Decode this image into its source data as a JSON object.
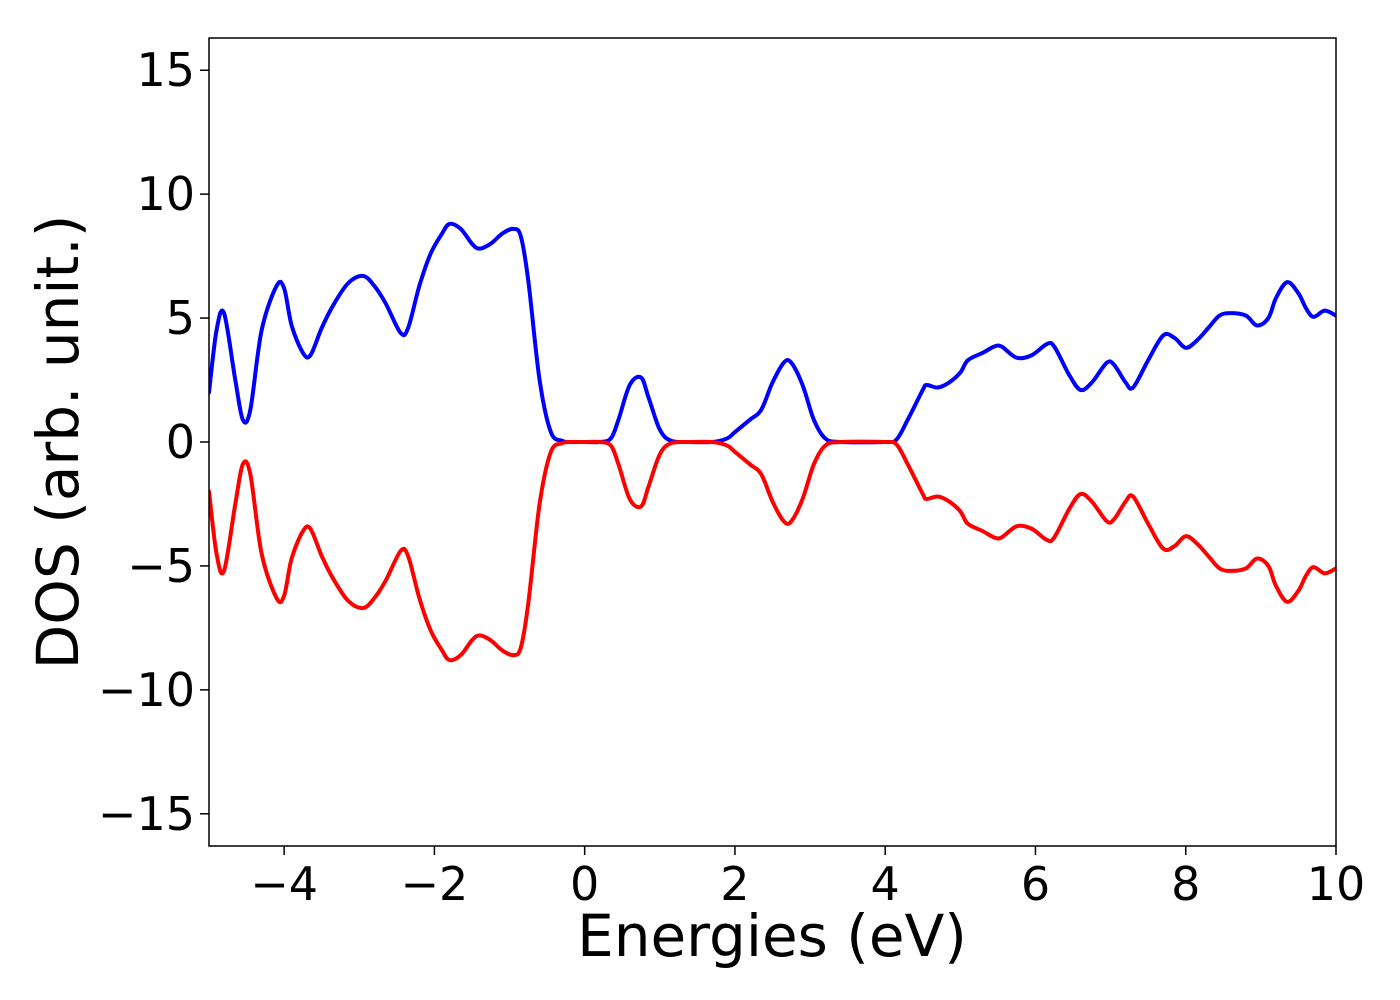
{
  "chart_data": {
    "type": "line",
    "title": "",
    "xlabel": "Energies (eV)",
    "ylabel": "DOS (arb. unit.)",
    "xlim": [
      -5,
      10
    ],
    "ylim": [
      -16.3,
      16.3
    ],
    "grid": false,
    "legend": "none",
    "x_ticks": [
      {
        "value": -4,
        "label": "−4"
      },
      {
        "value": -2,
        "label": "−2"
      },
      {
        "value": 0,
        "label": "0"
      },
      {
        "value": 2,
        "label": "2"
      },
      {
        "value": 4,
        "label": "4"
      },
      {
        "value": 6,
        "label": "6"
      },
      {
        "value": 8,
        "label": "8"
      },
      {
        "value": 10,
        "label": "10"
      }
    ],
    "y_ticks": [
      {
        "value": 15,
        "label": "15"
      },
      {
        "value": 10,
        "label": "10"
      },
      {
        "value": 5,
        "label": "5"
      },
      {
        "value": 0,
        "label": "0"
      },
      {
        "value": -5,
        "label": "−5"
      },
      {
        "value": -10,
        "label": "−10"
      },
      {
        "value": -15,
        "label": "−15"
      }
    ],
    "series": [
      {
        "color": "#0000ff",
        "x": [
          -5.0,
          -4.9,
          -4.8,
          -4.65,
          -4.55,
          -4.45,
          -4.3,
          -4.1,
          -4.0,
          -3.9,
          -3.75,
          -3.65,
          -3.5,
          -3.35,
          -3.15,
          -2.95,
          -2.8,
          -2.65,
          -2.45,
          -2.35,
          -2.2,
          -2.05,
          -1.9,
          -1.8,
          -1.65,
          -1.5,
          -1.4,
          -1.25,
          -1.1,
          -0.95,
          -0.85,
          -0.75,
          -0.6,
          -0.45,
          -0.3,
          -0.2,
          0.0,
          0.2,
          0.35,
          0.45,
          0.6,
          0.75,
          0.85,
          1.0,
          1.15,
          1.4,
          1.7,
          1.9,
          2.0,
          2.2,
          2.35,
          2.5,
          2.65,
          2.75,
          2.9,
          3.05,
          3.2,
          3.4,
          4.0,
          4.15,
          4.3,
          4.5,
          4.55,
          4.7,
          4.85,
          5.0,
          5.1,
          5.3,
          5.45,
          5.55,
          5.75,
          5.95,
          6.15,
          6.25,
          6.45,
          6.6,
          6.75,
          6.95,
          7.05,
          7.2,
          7.3,
          7.5,
          7.7,
          7.85,
          8.0,
          8.15,
          8.3,
          8.45,
          8.6,
          8.8,
          8.95,
          9.1,
          9.2,
          9.35,
          9.5,
          9.6,
          9.7,
          9.85,
          10.0
        ],
        "y": [
          2.0,
          4.5,
          5.2,
          2.5,
          0.9,
          1.3,
          4.5,
          6.3,
          6.2,
          4.7,
          3.6,
          3.5,
          4.6,
          5.5,
          6.4,
          6.7,
          6.3,
          5.6,
          4.4,
          4.6,
          6.3,
          7.6,
          8.4,
          8.8,
          8.6,
          8.0,
          7.8,
          8.0,
          8.4,
          8.6,
          8.3,
          6.5,
          2.5,
          0.4,
          0.05,
          0.0,
          0.0,
          0.0,
          0.15,
          0.9,
          2.3,
          2.6,
          1.8,
          0.5,
          0.05,
          0.0,
          0.0,
          0.15,
          0.4,
          0.9,
          1.3,
          2.4,
          3.2,
          3.2,
          2.3,
          0.9,
          0.15,
          0.0,
          0.0,
          0.1,
          0.9,
          2.1,
          2.3,
          2.2,
          2.4,
          2.8,
          3.3,
          3.6,
          3.85,
          3.85,
          3.4,
          3.5,
          3.95,
          3.85,
          2.7,
          2.1,
          2.4,
          3.2,
          3.1,
          2.4,
          2.2,
          3.3,
          4.3,
          4.2,
          3.8,
          4.1,
          4.6,
          5.1,
          5.2,
          5.1,
          4.7,
          5.0,
          5.8,
          6.45,
          6.0,
          5.4,
          5.05,
          5.3,
          5.1
        ]
      },
      {
        "color": "#ff0000",
        "x": [
          -5.0,
          -4.9,
          -4.8,
          -4.65,
          -4.55,
          -4.45,
          -4.3,
          -4.1,
          -4.0,
          -3.9,
          -3.75,
          -3.65,
          -3.5,
          -3.35,
          -3.15,
          -2.95,
          -2.8,
          -2.65,
          -2.45,
          -2.35,
          -2.2,
          -2.05,
          -1.9,
          -1.8,
          -1.65,
          -1.5,
          -1.4,
          -1.25,
          -1.1,
          -0.95,
          -0.85,
          -0.75,
          -0.6,
          -0.45,
          -0.3,
          -0.2,
          0.0,
          0.2,
          0.35,
          0.45,
          0.6,
          0.75,
          0.85,
          1.0,
          1.15,
          1.4,
          1.7,
          1.9,
          2.0,
          2.2,
          2.35,
          2.5,
          2.65,
          2.75,
          2.9,
          3.05,
          3.2,
          3.4,
          4.0,
          4.15,
          4.3,
          4.5,
          4.55,
          4.7,
          4.85,
          5.0,
          5.1,
          5.3,
          5.45,
          5.55,
          5.75,
          5.95,
          6.15,
          6.25,
          6.45,
          6.6,
          6.75,
          6.95,
          7.05,
          7.2,
          7.3,
          7.5,
          7.7,
          7.85,
          8.0,
          8.15,
          8.3,
          8.45,
          8.6,
          8.8,
          8.95,
          9.1,
          9.2,
          9.35,
          9.5,
          9.6,
          9.7,
          9.85,
          10.0
        ],
        "y": [
          -2.0,
          -4.5,
          -5.2,
          -2.5,
          -0.9,
          -1.3,
          -4.5,
          -6.3,
          -6.2,
          -4.7,
          -3.6,
          -3.5,
          -4.6,
          -5.5,
          -6.4,
          -6.7,
          -6.3,
          -5.6,
          -4.4,
          -4.6,
          -6.3,
          -7.6,
          -8.4,
          -8.8,
          -8.6,
          -8.0,
          -7.8,
          -8.0,
          -8.4,
          -8.6,
          -8.3,
          -6.5,
          -2.5,
          -0.4,
          -0.05,
          0.0,
          0.0,
          0.0,
          -0.15,
          -0.9,
          -2.3,
          -2.6,
          -1.8,
          -0.5,
          -0.05,
          0.0,
          0.0,
          -0.15,
          -0.4,
          -0.9,
          -1.3,
          -2.4,
          -3.2,
          -3.2,
          -2.3,
          -0.9,
          -0.15,
          0.0,
          0.0,
          -0.1,
          -0.9,
          -2.1,
          -2.3,
          -2.2,
          -2.4,
          -2.8,
          -3.3,
          -3.6,
          -3.85,
          -3.85,
          -3.4,
          -3.5,
          -3.95,
          -3.85,
          -2.7,
          -2.1,
          -2.4,
          -3.2,
          -3.1,
          -2.4,
          -2.2,
          -3.3,
          -4.3,
          -4.2,
          -3.8,
          -4.1,
          -4.6,
          -5.1,
          -5.2,
          -5.1,
          -4.7,
          -5.0,
          -5.8,
          -6.45,
          -6.0,
          -5.4,
          -5.05,
          -5.3,
          -5.1
        ]
      }
    ]
  }
}
